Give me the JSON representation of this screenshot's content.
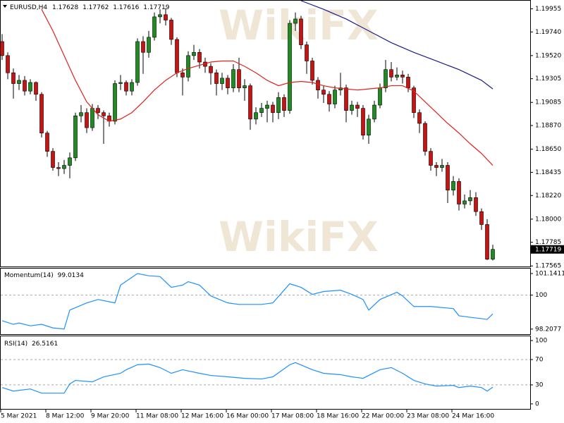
{
  "chart_data": [
    {
      "type": "candlestick",
      "title": "EURUSD,H4",
      "watermark": "WikiFX",
      "up_color": "#1e8c1e",
      "down_color": "#cc1111",
      "ylim": [
        1.1756,
        1.2003
      ],
      "yticks": [
        1.19955,
        {
          "value": 1.1974,
          "label": "1.19740"
        },
        {
          "value": 1.1952,
          "label": "1.19520"
        },
        1.19305,
        1.19085,
        {
          "value": 1.1887,
          "label": "1.18870"
        },
        {
          "value": 1.1865,
          "label": "1.18650"
        },
        1.18435,
        {
          "value": 1.1822,
          "label": "1.18220"
        },
        {
          "value": 1.18,
          "label": "1.18000"
        },
        1.17785,
        1.17565
      ],
      "xticks": [
        {
          "value": 0,
          "label": "5 Mar 2021"
        },
        {
          "value": 8,
          "label": "8 Mar 12:00"
        },
        {
          "value": 16,
          "label": "9 Mar 20:00"
        },
        {
          "value": 24,
          "label": "11 Mar 08:00"
        },
        {
          "value": 32,
          "label": "12 Mar 16:00"
        },
        {
          "value": 40,
          "label": "16 Mar 00:00"
        },
        {
          "value": 48,
          "label": "17 Mar 08:00"
        },
        {
          "value": 56,
          "label": "18 Mar 16:00"
        },
        {
          "value": 64,
          "label": "22 Mar 00:00"
        },
        {
          "value": 72,
          "label": "23 Mar 08:00"
        },
        {
          "value": 80,
          "label": "24 Mar 16:00"
        }
      ],
      "candles": [
        [
          1.1965,
          1.1972,
          1.1948,
          1.1952
        ],
        [
          1.1952,
          1.1955,
          1.193,
          1.1936
        ],
        [
          1.1936,
          1.194,
          1.1912,
          1.1926
        ],
        [
          1.1926,
          1.1934,
          1.192,
          1.1929
        ],
        [
          1.1929,
          1.1933,
          1.1915,
          1.1919
        ],
        [
          1.1919,
          1.193,
          1.1916,
          1.1927
        ],
        [
          1.1927,
          1.1928,
          1.191,
          1.1916
        ],
        [
          1.1916,
          1.1918,
          1.1876,
          1.188
        ],
        [
          1.188,
          1.1882,
          1.1858,
          1.1863
        ],
        [
          1.1863,
          1.1866,
          1.1845,
          1.1848
        ],
        [
          1.1848,
          1.1853,
          1.184,
          1.1847
        ],
        [
          1.1847,
          1.1855,
          1.1842,
          1.185
        ],
        [
          1.185,
          1.1862,
          1.1838,
          1.1857
        ],
        [
          1.1857,
          1.1899,
          1.1854,
          1.1896
        ],
        [
          1.1896,
          1.1906,
          1.189,
          1.1899
        ],
        [
          1.1899,
          1.1903,
          1.188,
          1.1885
        ],
        [
          1.1885,
          1.1907,
          1.1882,
          1.1903
        ],
        [
          1.1903,
          1.1906,
          1.1893,
          1.1899
        ],
        [
          1.1899,
          1.1901,
          1.187,
          1.1896
        ],
        [
          1.1896,
          1.1899,
          1.1886,
          1.1891
        ],
        [
          1.1891,
          1.1929,
          1.1888,
          1.1926
        ],
        [
          1.1926,
          1.1934,
          1.192,
          1.1927
        ],
        [
          1.1927,
          1.1929,
          1.1915,
          1.1919
        ],
        [
          1.1919,
          1.193,
          1.1915,
          1.1927
        ],
        [
          1.1927,
          1.1968,
          1.1924,
          1.1965
        ],
        [
          1.1965,
          1.197,
          1.1935,
          1.1955
        ],
        [
          1.1955,
          1.1975,
          1.195,
          1.1969
        ],
        [
          1.1969,
          1.1992,
          1.1966,
          1.1988
        ],
        [
          1.1988,
          1.1995,
          1.1982,
          1.199
        ],
        [
          1.199,
          1.1996,
          1.198,
          1.1985
        ],
        [
          1.1985,
          1.1987,
          1.1962,
          1.1967
        ],
        [
          1.1967,
          1.1969,
          1.1932,
          1.1936
        ],
        [
          1.1936,
          1.194,
          1.1915,
          1.1932
        ],
        [
          1.1932,
          1.1956,
          1.1928,
          1.1952
        ],
        [
          1.1952,
          1.1962,
          1.1948,
          1.1955
        ],
        [
          1.1955,
          1.1958,
          1.194,
          1.1946
        ],
        [
          1.1946,
          1.195,
          1.1936,
          1.1942
        ],
        [
          1.1942,
          1.1945,
          1.1925,
          1.1936
        ],
        [
          1.1936,
          1.1939,
          1.1915,
          1.1926
        ],
        [
          1.1926,
          1.1936,
          1.192,
          1.1931
        ],
        [
          1.1931,
          1.1934,
          1.1916,
          1.1922
        ],
        [
          1.1922,
          1.1944,
          1.1918,
          1.1939
        ],
        [
          1.1939,
          1.195,
          1.1918,
          1.1922
        ],
        [
          1.1922,
          1.193,
          1.191,
          1.1924
        ],
        [
          1.1924,
          1.1926,
          1.1883,
          1.1893
        ],
        [
          1.1893,
          1.1904,
          1.1888,
          1.1899
        ],
        [
          1.1899,
          1.1908,
          1.1895,
          1.1903
        ],
        [
          1.1903,
          1.191,
          1.189,
          1.1906
        ],
        [
          1.1906,
          1.1909,
          1.189,
          1.1899
        ],
        [
          1.1899,
          1.1918,
          1.1893,
          1.1913
        ],
        [
          1.1913,
          1.1916,
          1.1895,
          1.1901
        ],
        [
          1.1901,
          1.1985,
          1.1898,
          1.1982
        ],
        [
          1.1982,
          1.1992,
          1.1975,
          1.1986
        ],
        [
          1.1986,
          1.1989,
          1.1958,
          1.1962
        ],
        [
          1.1962,
          1.1965,
          1.1935,
          1.1947
        ],
        [
          1.1947,
          1.195,
          1.1925,
          1.1929
        ],
        [
          1.1929,
          1.1932,
          1.1912,
          1.192
        ],
        [
          1.192,
          1.1924,
          1.1908,
          1.1916
        ],
        [
          1.1916,
          1.1919,
          1.19,
          1.1907
        ],
        [
          1.1907,
          1.1924,
          1.1903,
          1.192
        ],
        [
          1.192,
          1.1936,
          1.1915,
          1.1922
        ],
        [
          1.1922,
          1.1925,
          1.189,
          1.1901
        ],
        [
          1.1901,
          1.191,
          1.1897,
          1.1906
        ],
        [
          1.1906,
          1.1909,
          1.1895,
          1.1903
        ],
        [
          1.1903,
          1.1906,
          1.1874,
          1.1878
        ],
        [
          1.1878,
          1.1897,
          1.187,
          1.1893
        ],
        [
          1.1893,
          1.191,
          1.189,
          1.1906
        ],
        [
          1.1906,
          1.1926,
          1.1903,
          1.1922
        ],
        [
          1.1922,
          1.1948,
          1.1918,
          1.1939
        ],
        [
          1.1939,
          1.1946,
          1.1928,
          1.1932
        ],
        [
          1.1932,
          1.1941,
          1.1929,
          1.1934
        ],
        [
          1.1934,
          1.1938,
          1.1926,
          1.1932
        ],
        [
          1.1932,
          1.1935,
          1.1918,
          1.1922
        ],
        [
          1.1922,
          1.1924,
          1.1894,
          1.1899
        ],
        [
          1.1899,
          1.1902,
          1.188,
          1.1889
        ],
        [
          1.1889,
          1.1891,
          1.1859,
          1.1863
        ],
        [
          1.1863,
          1.1866,
          1.1845,
          1.185
        ],
        [
          1.185,
          1.1853,
          1.184,
          1.1848
        ],
        [
          1.1848,
          1.1856,
          1.1844,
          1.185
        ],
        [
          1.185,
          1.1853,
          1.1815,
          1.1827
        ],
        [
          1.1827,
          1.184,
          1.1822,
          1.1835
        ],
        [
          1.1835,
          1.1838,
          1.1808,
          1.1814
        ],
        [
          1.1814,
          1.1823,
          1.181,
          1.1817
        ],
        [
          1.1817,
          1.1827,
          1.1813,
          1.182
        ],
        [
          1.182,
          1.1825,
          1.1803,
          1.1807
        ],
        [
          1.1807,
          1.181,
          1.179,
          1.1795
        ],
        [
          1.1795,
          1.18,
          1.1762,
          1.17628
        ],
        [
          1.17628,
          1.17762,
          1.17616,
          1.17719
        ]
      ],
      "series": [
        {
          "color": "#e0221c",
          "x": [
            7,
            9,
            11,
            13,
            15,
            17,
            19,
            21,
            23,
            25,
            27,
            29,
            31,
            33,
            35,
            37,
            39,
            41,
            43,
            45,
            47,
            49,
            51,
            53,
            55,
            57,
            59,
            61,
            63,
            65,
            67,
            69,
            71,
            73,
            75,
            77,
            79,
            81,
            83,
            85,
            87
          ],
          "values": [
            1.1995,
            1.1975,
            1.1952,
            1.1929,
            1.1909,
            1.1897,
            1.1891,
            1.1893,
            1.1899,
            1.1909,
            1.192,
            1.1929,
            1.1936,
            1.194,
            1.1943,
            1.1946,
            1.1947,
            1.1947,
            1.1942,
            1.1936,
            1.1929,
            1.1924,
            1.1927,
            1.1928,
            1.1927,
            1.1924,
            1.1922,
            1.1921,
            1.192,
            1.1921,
            1.1922,
            1.1924,
            1.1924,
            1.1919,
            1.1909,
            1.1899,
            1.1889,
            1.188,
            1.187,
            1.1861,
            1.185
          ]
        },
        {
          "color": "#1c1c8c",
          "x": [
            53,
            57,
            61,
            65,
            69,
            73,
            77,
            81,
            85,
            87
          ],
          "values": [
            1.2003,
            1.1995,
            1.1986,
            1.1975,
            1.1964,
            1.1955,
            1.1947,
            1.1939,
            1.1929,
            1.1921
          ]
        }
      ]
    },
    {
      "type": "line",
      "title": "Momentum(14)",
      "last": 99.0134,
      "ylim": [
        97.94,
        101.4
      ],
      "yticks": [
        101.1411,
        100,
        98.2077
      ],
      "levels": [
        100
      ],
      "series": [
        {
          "color": "#1e90ff",
          "x": [
            0,
            2,
            3,
            5,
            7,
            9,
            11,
            12,
            15,
            17,
            20,
            21,
            24,
            26,
            28,
            30,
            32,
            33,
            35,
            37,
            40,
            42,
            46,
            48,
            51,
            53,
            55,
            57,
            60,
            62,
            64,
            65,
            67,
            70,
            71,
            73,
            76,
            80,
            81,
            83,
            85,
            86,
            87
          ],
          "values": [
            98.65,
            98.46,
            98.53,
            98.38,
            98.46,
            98.27,
            98.21,
            99.21,
            99.59,
            99.77,
            99.59,
            100.53,
            101.14,
            101.02,
            100.98,
            100.41,
            100.53,
            100.71,
            100.53,
            99.96,
            99.59,
            99.51,
            99.51,
            99.59,
            100.6,
            100.41,
            100.04,
            100.19,
            100.26,
            100.04,
            99.77,
            99.21,
            99.77,
            100.15,
            99.96,
            99.4,
            99.4,
            99.29,
            98.91,
            98.83,
            98.76,
            98.72,
            99.01
          ]
        }
      ]
    },
    {
      "type": "line",
      "title": "RSI(14)",
      "last": 26.5161,
      "ylim": [
        -7.9,
        106.7
      ],
      "yticks": [
        100,
        70,
        30,
        0
      ],
      "levels": [
        70,
        30
      ],
      "series": [
        {
          "color": "#1e90ff",
          "x": [
            0,
            2,
            5,
            7,
            11,
            12,
            13,
            16,
            18,
            21,
            22,
            24,
            26,
            28,
            30,
            32,
            35,
            37,
            40,
            43,
            46,
            48,
            51,
            52,
            55,
            57,
            60,
            62,
            64,
            67,
            69,
            71,
            73,
            75,
            77,
            80,
            81,
            83,
            85,
            86,
            87
          ],
          "values": [
            25.8,
            20.2,
            23.6,
            16.9,
            16.9,
            31.5,
            37.1,
            34.8,
            42.7,
            48.3,
            53.9,
            61.8,
            62.9,
            57.3,
            48.3,
            53.9,
            48.3,
            44.9,
            42.7,
            40.4,
            39.3,
            42.7,
            61.8,
            65.2,
            53.9,
            48.3,
            46.1,
            42.7,
            40.4,
            53.9,
            57.3,
            48.3,
            37.1,
            31.5,
            28.1,
            29.2,
            25.8,
            28.1,
            25.8,
            20.2,
            26.5
          ]
        }
      ]
    }
  ]
}
